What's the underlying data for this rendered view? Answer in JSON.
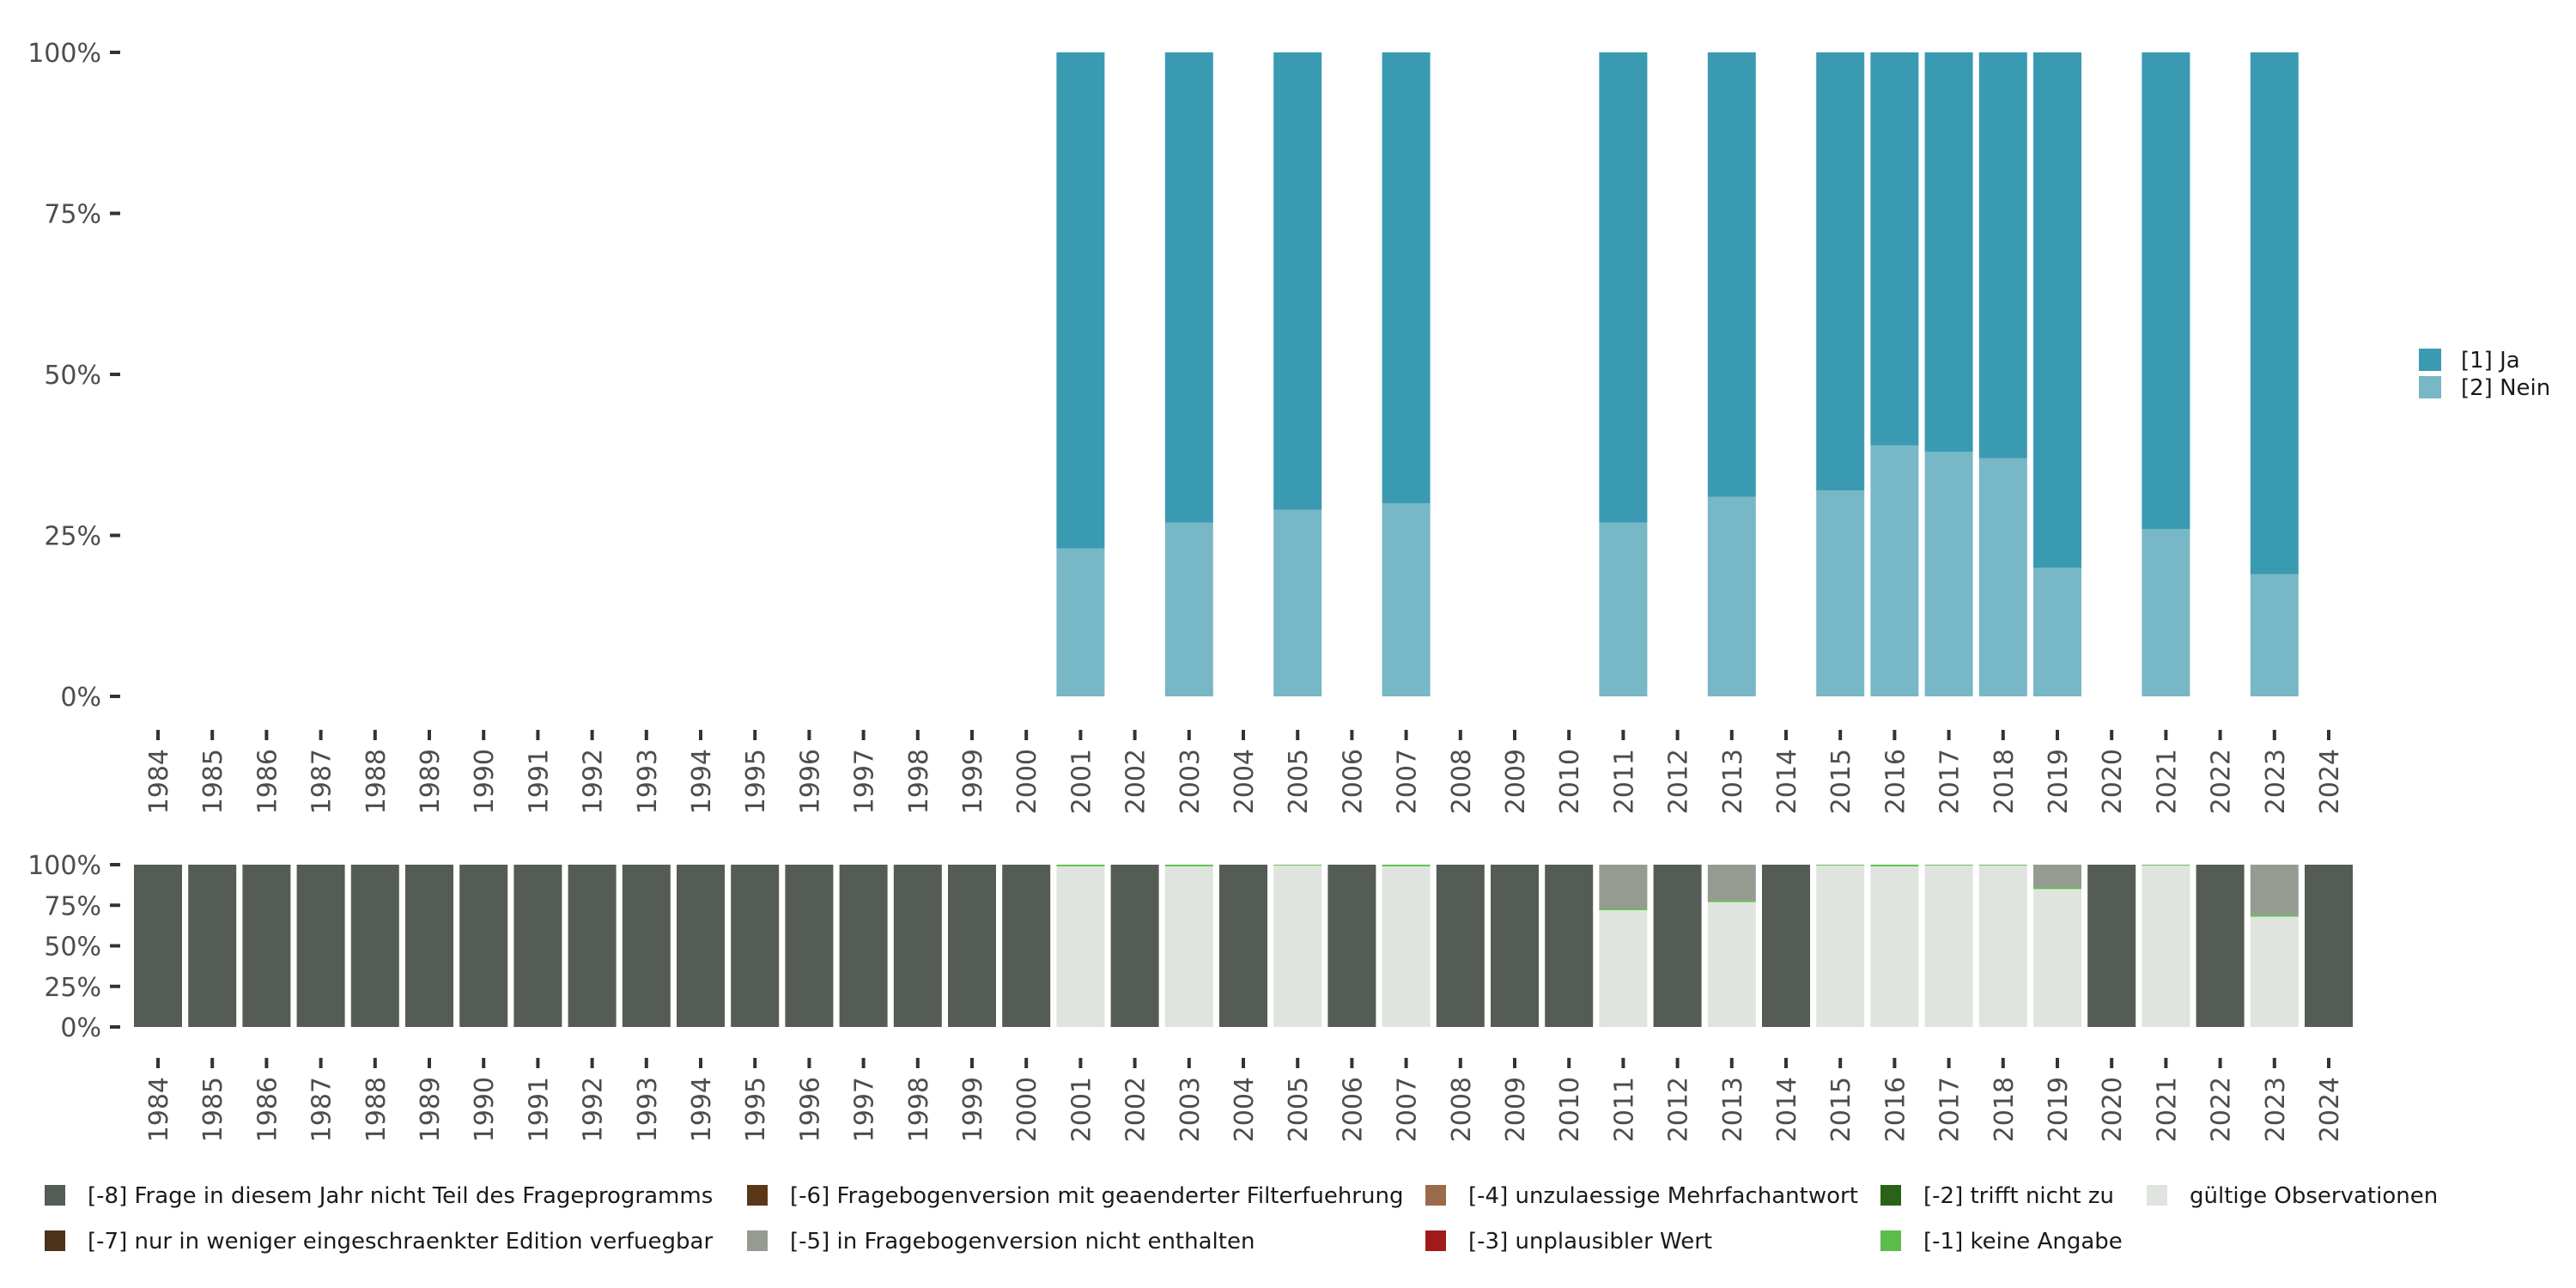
{
  "chart_data": [
    {
      "type": "bar",
      "stacked": true,
      "title": "",
      "xlabel": "",
      "ylabel": "",
      "ylim": [
        0,
        100
      ],
      "y_ticks": [
        "0%",
        "25%",
        "50%",
        "75%",
        "100%"
      ],
      "categories": [
        "1984",
        "1985",
        "1986",
        "1987",
        "1988",
        "1989",
        "1990",
        "1991",
        "1992",
        "1993",
        "1994",
        "1995",
        "1996",
        "1997",
        "1998",
        "1999",
        "2000",
        "2001",
        "2002",
        "2003",
        "2004",
        "2005",
        "2006",
        "2007",
        "2008",
        "2009",
        "2010",
        "2011",
        "2012",
        "2013",
        "2014",
        "2015",
        "2016",
        "2017",
        "2018",
        "2019",
        "2020",
        "2021",
        "2022",
        "2023",
        "2024"
      ],
      "series": [
        {
          "name": "[2] Nein",
          "color": "#78b7c5",
          "values": [
            null,
            null,
            null,
            null,
            null,
            null,
            null,
            null,
            null,
            null,
            null,
            null,
            null,
            null,
            null,
            null,
            null,
            23,
            null,
            27,
            null,
            29,
            null,
            30,
            null,
            null,
            null,
            27,
            null,
            31,
            null,
            32,
            39,
            38,
            37,
            20,
            null,
            26,
            null,
            19,
            null
          ]
        },
        {
          "name": "[1] Ja",
          "color": "#3a9ab2",
          "values": [
            null,
            null,
            null,
            null,
            null,
            null,
            null,
            null,
            null,
            null,
            null,
            null,
            null,
            null,
            null,
            null,
            null,
            77,
            null,
            73,
            null,
            71,
            null,
            70,
            null,
            null,
            null,
            73,
            null,
            69,
            null,
            68,
            61,
            62,
            63,
            80,
            null,
            74,
            null,
            81,
            null
          ]
        }
      ],
      "legend": [
        "[1] Ja",
        "[2] Nein"
      ],
      "legend_position": "right"
    },
    {
      "type": "bar",
      "stacked": true,
      "title": "",
      "xlabel": "",
      "ylabel": "",
      "ylim": [
        0,
        100
      ],
      "y_ticks": [
        "0%",
        "25%",
        "50%",
        "75%",
        "100%"
      ],
      "categories": [
        "1984",
        "1985",
        "1986",
        "1987",
        "1988",
        "1989",
        "1990",
        "1991",
        "1992",
        "1993",
        "1994",
        "1995",
        "1996",
        "1997",
        "1998",
        "1999",
        "2000",
        "2001",
        "2002",
        "2003",
        "2004",
        "2005",
        "2006",
        "2007",
        "2008",
        "2009",
        "2010",
        "2011",
        "2012",
        "2013",
        "2014",
        "2015",
        "2016",
        "2017",
        "2018",
        "2019",
        "2020",
        "2021",
        "2022",
        "2023",
        "2024"
      ],
      "series": [
        {
          "name": "gültige Observationen",
          "color": "#e0e4df",
          "values": [
            0,
            0,
            0,
            0,
            0,
            0,
            0,
            0,
            0,
            0,
            0,
            0,
            0,
            0,
            0,
            0,
            0,
            99,
            0,
            99,
            0,
            99.5,
            0,
            99,
            0,
            0,
            0,
            72,
            0,
            77,
            0,
            99.5,
            99,
            99.5,
            99.5,
            85,
            0,
            99.5,
            0,
            68,
            0
          ]
        },
        {
          "name": "[-1] keine Angabe",
          "color": "#5bbd4a",
          "values": [
            0,
            0,
            0,
            0,
            0,
            0,
            0,
            0,
            0,
            0,
            0,
            0,
            0,
            0,
            0,
            0,
            0,
            1,
            0,
            1,
            0,
            0.5,
            0,
            1,
            0,
            0,
            0,
            1,
            0,
            1,
            0,
            0.5,
            1,
            0.5,
            0.5,
            1,
            0,
            0.5,
            0,
            1,
            0
          ]
        },
        {
          "name": "[-5] in Fragebogenversion nicht enthalten",
          "color": "#969b91",
          "values": [
            0,
            0,
            0,
            0,
            0,
            0,
            0,
            0,
            0,
            0,
            0,
            0,
            0,
            0,
            0,
            0,
            0,
            0,
            0,
            0,
            0,
            0,
            0,
            0,
            0,
            0,
            0,
            27,
            0,
            22,
            0,
            0,
            0,
            0,
            0,
            14,
            0,
            0,
            0,
            31,
            0
          ]
        },
        {
          "name": "[-8] Frage in diesem Jahr nicht Teil des Frageprogramms",
          "color": "#555b55",
          "values": [
            100,
            100,
            100,
            100,
            100,
            100,
            100,
            100,
            100,
            100,
            100,
            100,
            100,
            100,
            100,
            100,
            100,
            0,
            100,
            0,
            100,
            0,
            100,
            0,
            100,
            100,
            100,
            0,
            100,
            0,
            100,
            0,
            0,
            0,
            0,
            0,
            100,
            0,
            100,
            0,
            100
          ]
        }
      ],
      "legend": [
        {
          "label": "[-8] Frage in diesem Jahr nicht Teil des Frageprogramms",
          "color": "#555b55"
        },
        {
          "label": "[-7] nur in weniger eingeschraenkter Edition verfuegbar",
          "color": "#4d3319"
        },
        {
          "label": "[-6] Fragebogenversion mit geaenderter Filterfuehrung",
          "color": "#5a3716"
        },
        {
          "label": "[-5] in Fragebogenversion nicht enthalten",
          "color": "#969b91"
        },
        {
          "label": "[-4] unzulaessige Mehrfachantwort",
          "color": "#9a6a4a"
        },
        {
          "label": "[-3] unplausibler Wert",
          "color": "#a11a1a"
        },
        {
          "label": "[-2] trifft nicht zu",
          "color": "#2a6218"
        },
        {
          "label": "[-1] keine Angabe",
          "color": "#5bbd4a"
        },
        {
          "label": "gültige Observationen",
          "color": "#e0e4df"
        }
      ],
      "legend_position": "bottom"
    }
  ]
}
